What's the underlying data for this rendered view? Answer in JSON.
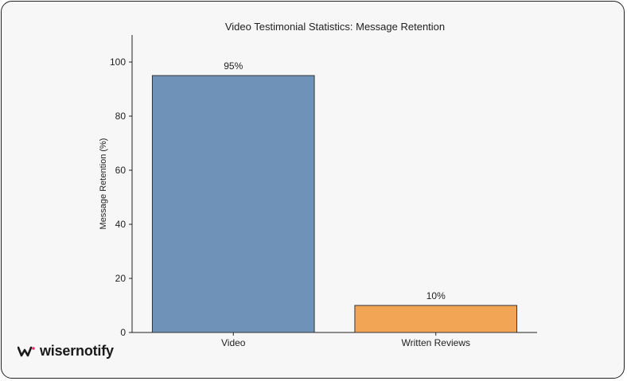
{
  "brand": {
    "name": "wisernotify",
    "icon": "wisernotify-logo-icon",
    "accent": "#e8316f"
  },
  "chart_data": {
    "type": "bar",
    "title": "Video Testimonial Statistics: Message Retention",
    "xlabel": "",
    "ylabel": "Message Retention (%)",
    "categories": [
      "Video",
      "Written Reviews"
    ],
    "values": [
      95,
      10
    ],
    "data_labels": [
      "95%",
      "10%"
    ],
    "colors": [
      "#6f93b8",
      "#f2a555"
    ],
    "ylim": [
      0,
      110
    ],
    "yticks": [
      0,
      20,
      40,
      60,
      80,
      100
    ],
    "grid": false,
    "legend": "none"
  }
}
